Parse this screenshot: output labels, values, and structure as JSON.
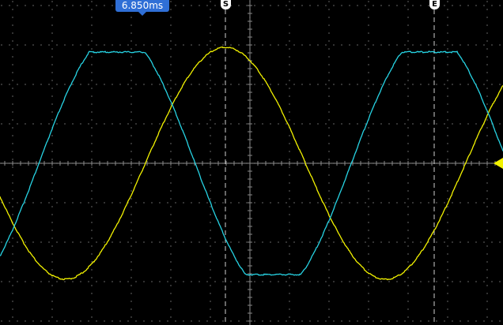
{
  "timebase_readout": "6.850ms",
  "cursors": {
    "start_label": "S",
    "end_label": "E"
  },
  "colors": {
    "background": "#000000",
    "grid": "#8a8a8a",
    "cursor_line": "#cfcfcf",
    "badge": "#2f6fd6",
    "channel_a": "#27d3e3",
    "channel_b": "#f2f200",
    "trigger_marker": "#f2f200"
  },
  "channels": [
    {
      "id": "cyan",
      "color": "#27d3e3"
    },
    {
      "id": "yellow",
      "color": "#f2f200"
    }
  ],
  "icons": {
    "trigger_level": "triangle-left-icon",
    "time_marker": "triangle-down-icon"
  }
}
